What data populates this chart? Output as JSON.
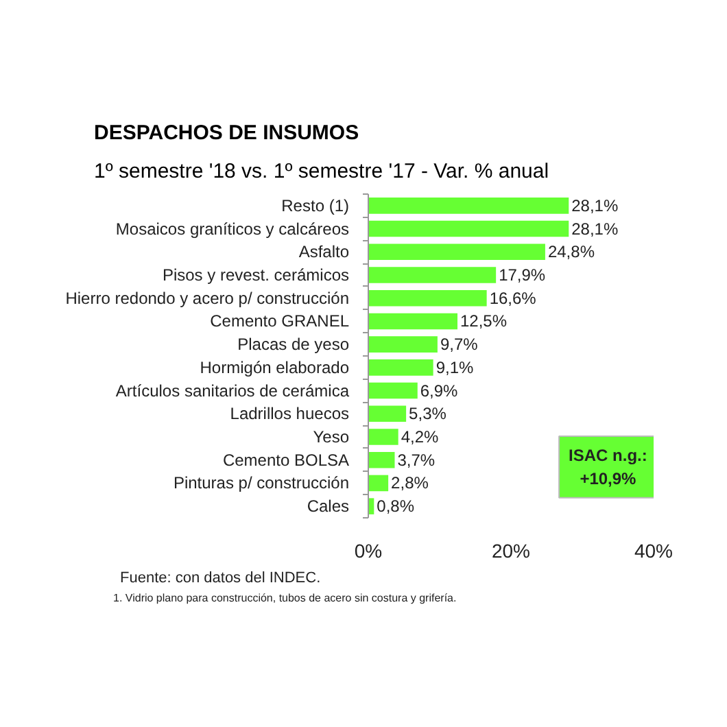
{
  "chart_data": {
    "type": "bar",
    "orientation": "horizontal",
    "title": "DESPACHOS DE INSUMOS",
    "subtitle": "1º semestre '18 vs. 1º semestre '17 - Var. % anual",
    "categories": [
      "Resto (1)",
      "Mosaicos graníticos y calcáreos",
      "Asfalto",
      "Pisos y revest. cerámicos",
      "Hierro redondo y acero p/ construcción",
      "Cemento GRANEL",
      "Placas de yeso",
      "Hormigón elaborado",
      "Artículos sanitarios de cerámica",
      "Ladrillos huecos",
      "Yeso",
      "Cemento BOLSA",
      "Pinturas p/ construcción",
      "Cales"
    ],
    "values": [
      28.1,
      28.1,
      24.8,
      17.9,
      16.6,
      12.5,
      9.7,
      9.1,
      6.9,
      5.3,
      4.2,
      3.7,
      2.8,
      0.8
    ],
    "value_labels": [
      "28,1%",
      "28,1%",
      "24,8%",
      "17,9%",
      "16,6%",
      "12,5%",
      "9,7%",
      "9,1%",
      "6,9%",
      "5,3%",
      "4,2%",
      "3,7%",
      "2,8%",
      "0,8%"
    ],
    "color": "#66ff33",
    "xlim": [
      0,
      40
    ],
    "xticks": [
      {
        "value": 0,
        "label": "0%"
      },
      {
        "value": 20,
        "label": "20%"
      },
      {
        "value": 40,
        "label": "40%"
      }
    ],
    "annotations": [
      "ISAC n.g.:\n+10,9%",
      "Fuente: con datos del INDEC.",
      "1. Vidrio plano para construcción, tubos de acero sin costura y grifería."
    ]
  }
}
